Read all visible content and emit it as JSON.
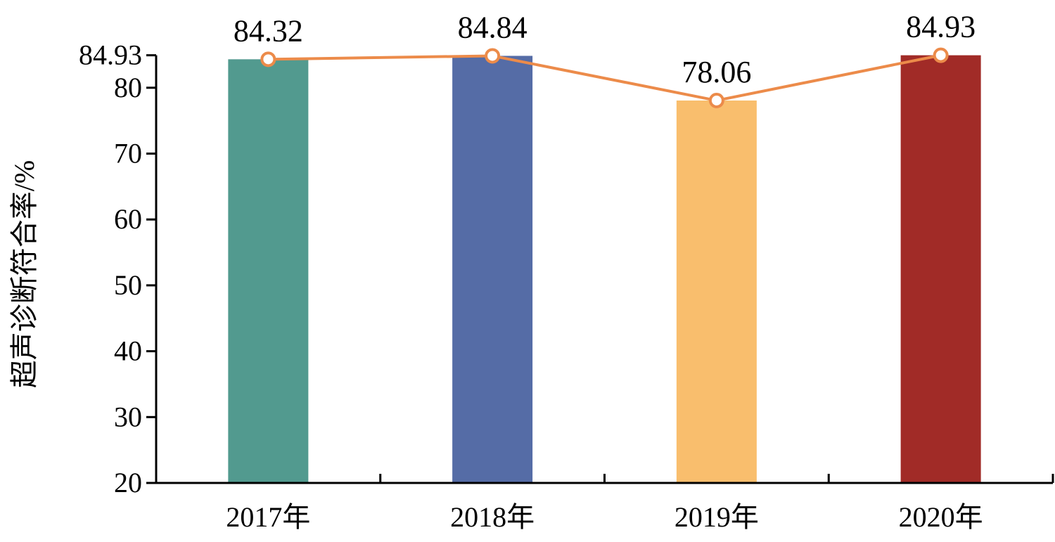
{
  "chart_data": {
    "type": "bar",
    "title": "",
    "xlabel": "",
    "ylabel": "超声诊断符合率/%",
    "categories": [
      "2017年",
      "2018年",
      "2019年",
      "2020年"
    ],
    "values": [
      84.32,
      84.84,
      78.06,
      84.93
    ],
    "bar_colors": [
      "#529a8f",
      "#556ca6",
      "#f9be6d",
      "#a12b27"
    ],
    "line_color": "#ec8b4a",
    "data_labels": [
      "84.32",
      "84.84",
      "78.06",
      "84.93"
    ],
    "ylim": [
      20,
      85
    ],
    "yticks": [
      {
        "value": 20,
        "label": "20"
      },
      {
        "value": 30,
        "label": "30"
      },
      {
        "value": 40,
        "label": "40"
      },
      {
        "value": 50,
        "label": "50"
      },
      {
        "value": 60,
        "label": "60"
      },
      {
        "value": 70,
        "label": "70"
      },
      {
        "value": 80,
        "label": "80"
      },
      {
        "value": 84.93,
        "label": "84.93"
      }
    ],
    "grid": false,
    "legend": "none"
  }
}
